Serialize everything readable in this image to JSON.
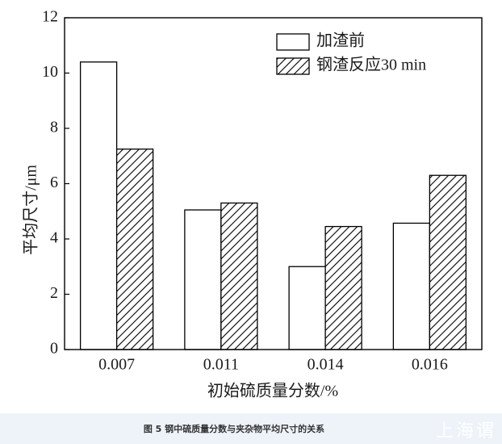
{
  "chart_data": {
    "type": "bar",
    "x_label": "初始硫质量分数/%",
    "y_label": "平均尺寸/μm",
    "categories": [
      "0.007",
      "0.011",
      "0.014",
      "0.016"
    ],
    "series": [
      {
        "name": "加渣前",
        "color": "#000000",
        "hatch": false,
        "values": [
          10.4,
          5.05,
          3.0,
          4.57
        ]
      },
      {
        "name": "钢渣反应30 min",
        "color": "#000000",
        "hatch": true,
        "values": [
          7.25,
          5.3,
          4.45,
          6.3
        ]
      }
    ],
    "ylim": [
      0,
      12
    ],
    "yticks": [
      0,
      2,
      4,
      6,
      8,
      10,
      12
    ],
    "legend": "upper right",
    "grid": false
  },
  "caption": "图 5 钢中硫质量分数与夹杂物平均尺寸的关系",
  "watermark": "上海谓"
}
